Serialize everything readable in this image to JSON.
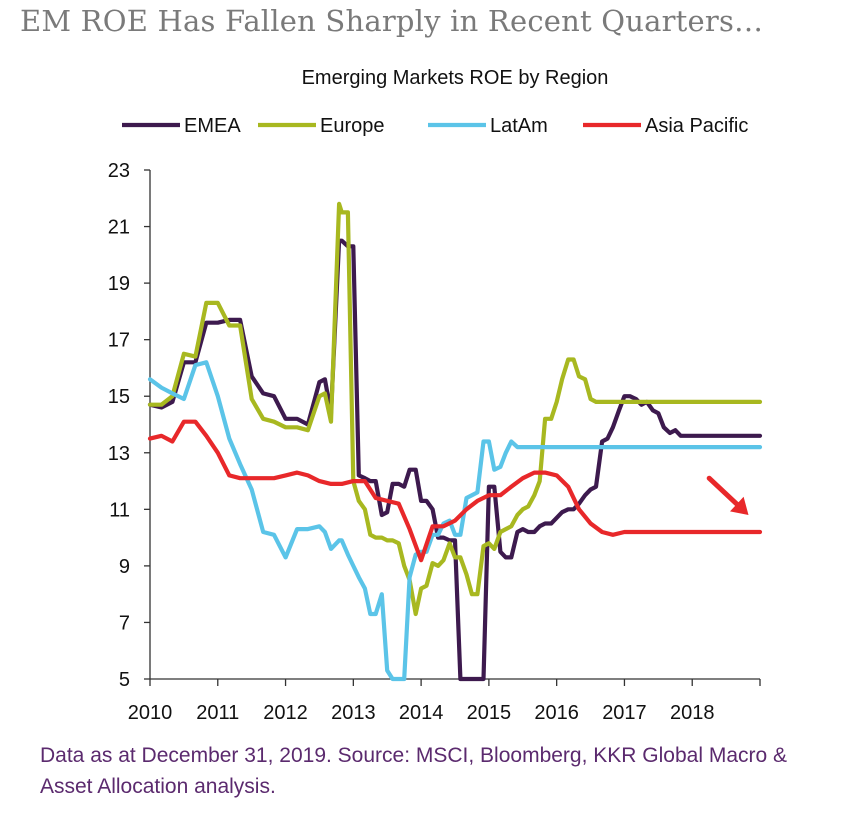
{
  "headline": "EM ROE Has Fallen Sharply in Recent Quarters…",
  "footnote": "Data as at December 31, 2019. Source: MSCI, Bloomberg, KKR Global Macro & Asset Allocation analysis.",
  "chart_data": {
    "type": "line",
    "title": "Emerging Markets ROE by Region",
    "xlabel": "",
    "ylabel": "",
    "xlim": [
      2010,
      2019
    ],
    "ylim": [
      5,
      23
    ],
    "x_ticks": [
      2010,
      2011,
      2012,
      2013,
      2014,
      2015,
      2016,
      2017,
      2018,
      2019
    ],
    "x_tick_labels": [
      "2010",
      "2011",
      "2012",
      "2013",
      "2014",
      "2015",
      "2016",
      "2017",
      "2018",
      ""
    ],
    "y_ticks": [
      5,
      7,
      9,
      11,
      13,
      15,
      17,
      19,
      21,
      23
    ],
    "legend_position": "top",
    "series": [
      {
        "name": "EMEA",
        "color": "#3d1a4e",
        "x": [
          2010.0,
          2010.17,
          2010.33,
          2010.5,
          2010.67,
          2010.83,
          2011.0,
          2011.17,
          2011.33,
          2011.5,
          2011.67,
          2011.83,
          2012.0,
          2012.17,
          2012.33,
          2012.5,
          2012.58,
          2012.67,
          2012.79,
          2012.83,
          2012.92,
          2013.0,
          2013.08,
          2013.17,
          2013.25,
          2013.33,
          2013.42,
          2013.5,
          2013.58,
          2013.67,
          2013.75,
          2013.83,
          2013.92,
          2014.0,
          2014.08,
          2014.17,
          2014.25,
          2014.33,
          2014.42,
          2014.5,
          2014.58,
          2014.67,
          2014.75,
          2014.83,
          2014.92,
          2015.0,
          2015.08,
          2015.17,
          2015.25,
          2015.33,
          2015.42,
          2015.5,
          2015.58,
          2015.67,
          2015.75,
          2015.83,
          2015.92,
          2016.0,
          2016.08,
          2016.17,
          2016.25,
          2016.33,
          2016.42,
          2016.5,
          2016.58,
          2016.67,
          2016.75,
          2016.83,
          2016.92,
          2017.0,
          2017.08,
          2017.17,
          2017.25,
          2017.33,
          2017.42,
          2017.5,
          2017.58,
          2017.67,
          2017.75,
          2017.83,
          2017.92,
          2018.0,
          2018.08,
          2018.17,
          2018.25,
          2018.33,
          2018.42,
          2018.5,
          2018.58,
          2018.67,
          2018.75,
          2018.83,
          2018.92,
          2019.0
        ],
        "values": [
          14.7,
          14.6,
          14.8,
          16.2,
          16.2,
          17.6,
          17.6,
          17.7,
          17.7,
          15.7,
          15.1,
          15.0,
          14.2,
          14.2,
          14.0,
          15.5,
          15.6,
          14.4,
          20.5,
          20.5,
          20.3,
          20.3,
          12.2,
          12.1,
          12.0,
          12.0,
          10.8,
          10.9,
          11.9,
          11.9,
          11.8,
          12.4,
          12.4,
          11.3,
          11.3,
          11.0,
          10.0,
          10.0,
          9.9,
          9.9,
          5.0,
          5.0,
          5.0,
          5.0,
          5.0,
          11.8,
          11.8,
          9.5,
          9.3,
          9.3,
          10.2,
          10.3,
          10.2,
          10.2,
          10.4,
          10.5,
          10.5,
          10.7,
          10.9,
          11.0,
          11.0,
          11.2,
          11.5,
          11.7,
          11.8,
          13.4,
          13.5,
          13.9,
          14.5,
          15.0,
          15.0,
          14.9,
          14.7,
          14.8,
          14.5,
          14.4,
          13.9,
          13.7,
          13.8,
          13.6,
          13.6,
          13.6,
          13.6,
          13.6,
          13.6,
          13.6,
          13.6,
          13.6,
          13.6,
          13.6,
          13.6,
          13.6,
          13.6,
          13.6
        ]
      },
      {
        "name": "Europe",
        "color": "#a8b820",
        "x": [
          2010.0,
          2010.17,
          2010.33,
          2010.5,
          2010.67,
          2010.83,
          2011.0,
          2011.17,
          2011.33,
          2011.5,
          2011.67,
          2011.83,
          2012.0,
          2012.17,
          2012.33,
          2012.5,
          2012.58,
          2012.67,
          2012.79,
          2012.83,
          2012.92,
          2013.0,
          2013.08,
          2013.17,
          2013.25,
          2013.33,
          2013.42,
          2013.5,
          2013.58,
          2013.67,
          2013.75,
          2013.83,
          2013.92,
          2014.0,
          2014.08,
          2014.17,
          2014.25,
          2014.33,
          2014.42,
          2014.5,
          2014.58,
          2014.67,
          2014.75,
          2014.83,
          2014.92,
          2015.0,
          2015.08,
          2015.17,
          2015.25,
          2015.33,
          2015.42,
          2015.5,
          2015.58,
          2015.67,
          2015.75,
          2015.83,
          2015.92,
          2016.0,
          2016.08,
          2016.17,
          2016.25,
          2016.33,
          2016.42,
          2016.5,
          2016.58,
          2016.67,
          2016.75,
          2016.83,
          2016.92,
          2017.0,
          2017.08,
          2017.17,
          2017.25,
          2017.33,
          2017.42,
          2017.5,
          2017.58,
          2017.67,
          2017.75,
          2017.83,
          2017.92,
          2018.0,
          2018.08,
          2018.17,
          2018.25,
          2018.33,
          2018.42,
          2018.5,
          2018.58,
          2018.67,
          2018.75,
          2018.83,
          2018.92,
          2019.0
        ],
        "values": [
          14.7,
          14.7,
          15.0,
          16.5,
          16.4,
          18.3,
          18.3,
          17.5,
          17.5,
          14.9,
          14.2,
          14.1,
          13.9,
          13.9,
          13.8,
          15.0,
          15.1,
          14.1,
          21.8,
          21.5,
          21.5,
          12.0,
          11.3,
          11.0,
          10.1,
          10.0,
          10.0,
          9.9,
          9.9,
          9.8,
          9.0,
          8.5,
          7.3,
          8.2,
          8.3,
          9.1,
          9.0,
          9.2,
          9.8,
          9.3,
          9.3,
          8.7,
          8.0,
          8.0,
          9.7,
          9.8,
          9.6,
          10.2,
          10.3,
          10.4,
          10.8,
          11.0,
          11.1,
          11.5,
          12.0,
          14.2,
          14.2,
          14.8,
          15.6,
          16.3,
          16.3,
          15.7,
          15.6,
          14.9,
          14.8,
          14.8,
          14.8,
          14.8,
          14.8,
          14.8,
          14.8,
          14.8,
          14.8,
          14.8,
          14.8,
          14.8,
          14.8,
          14.8,
          14.8,
          14.8,
          14.8,
          14.8,
          14.8,
          14.8,
          14.8,
          14.8,
          14.8,
          14.8,
          14.8,
          14.8,
          14.8,
          14.8,
          14.8,
          14.8
        ]
      },
      {
        "name": "LatAm",
        "color": "#5bc4e8",
        "x": [
          2010.0,
          2010.17,
          2010.33,
          2010.5,
          2010.67,
          2010.83,
          2011.0,
          2011.17,
          2011.33,
          2011.5,
          2011.67,
          2011.83,
          2012.0,
          2012.17,
          2012.33,
          2012.5,
          2012.58,
          2012.67,
          2012.79,
          2012.83,
          2012.92,
          2013.0,
          2013.08,
          2013.17,
          2013.25,
          2013.33,
          2013.42,
          2013.5,
          2013.58,
          2013.67,
          2013.75,
          2013.83,
          2013.92,
          2014.0,
          2014.08,
          2014.17,
          2014.25,
          2014.33,
          2014.42,
          2014.5,
          2014.58,
          2014.67,
          2014.75,
          2014.83,
          2014.92,
          2015.0,
          2015.08,
          2015.17,
          2015.25,
          2015.33,
          2015.42,
          2015.5,
          2015.58,
          2015.67,
          2015.75,
          2015.83,
          2015.92,
          2016.0,
          2016.08,
          2016.17,
          2016.25,
          2016.33,
          2016.42,
          2016.5,
          2016.58,
          2016.67,
          2016.75,
          2016.83,
          2016.92,
          2017.0,
          2017.08,
          2017.17,
          2017.25,
          2017.33,
          2017.42,
          2017.5,
          2017.58,
          2017.67,
          2017.75,
          2017.83,
          2017.92,
          2018.0,
          2018.08,
          2018.17,
          2018.25,
          2018.33,
          2018.42,
          2018.5,
          2018.58,
          2018.67,
          2018.75,
          2018.83,
          2018.92,
          2019.0
        ],
        "values": [
          15.6,
          15.3,
          15.1,
          14.9,
          16.1,
          16.2,
          15.0,
          13.5,
          12.6,
          11.7,
          10.2,
          10.1,
          9.3,
          10.3,
          10.3,
          10.4,
          10.2,
          9.6,
          9.9,
          9.9,
          9.4,
          9.0,
          8.6,
          8.2,
          7.3,
          7.3,
          8.0,
          5.3,
          5.0,
          5.0,
          5.0,
          8.6,
          9.4,
          9.5,
          9.5,
          10.1,
          10.1,
          10.5,
          10.6,
          10.1,
          10.1,
          11.4,
          11.5,
          11.6,
          13.4,
          13.4,
          12.4,
          12.5,
          13.0,
          13.4,
          13.2,
          13.2,
          13.2,
          13.2,
          13.2,
          13.2,
          13.2,
          13.2,
          13.2,
          13.2,
          13.2,
          13.2,
          13.2,
          13.2,
          13.2,
          13.2,
          13.2,
          13.2,
          13.2,
          13.2,
          13.2,
          13.2,
          13.2,
          13.2,
          13.2,
          13.2,
          13.2,
          13.2,
          13.2,
          13.2,
          13.2,
          13.2,
          13.2,
          13.2,
          13.2,
          13.2,
          13.2,
          13.2,
          13.2,
          13.2,
          13.2,
          13.2,
          13.2,
          13.2
        ]
      },
      {
        "name": "Asia Pacific",
        "color": "#e8282a",
        "x": [
          2010.0,
          2010.17,
          2010.33,
          2010.5,
          2010.67,
          2010.83,
          2011.0,
          2011.17,
          2011.33,
          2011.5,
          2011.67,
          2011.83,
          2012.0,
          2012.17,
          2012.33,
          2012.5,
          2012.67,
          2012.83,
          2013.0,
          2013.17,
          2013.33,
          2013.5,
          2013.67,
          2013.83,
          2014.0,
          2014.17,
          2014.33,
          2014.5,
          2014.67,
          2014.83,
          2015.0,
          2015.17,
          2015.33,
          2015.5,
          2015.67,
          2015.83,
          2016.0,
          2016.17,
          2016.33,
          2016.5,
          2016.67,
          2016.83,
          2017.0,
          2017.17,
          2017.33,
          2017.5,
          2017.67,
          2017.83,
          2018.0,
          2018.17,
          2018.33,
          2018.5,
          2018.67,
          2018.83,
          2019.0
        ],
        "values": [
          13.5,
          13.6,
          13.4,
          14.1,
          14.1,
          13.6,
          13.0,
          12.2,
          12.1,
          12.1,
          12.1,
          12.1,
          12.2,
          12.3,
          12.2,
          12.0,
          11.9,
          11.9,
          12.0,
          12.0,
          11.4,
          11.3,
          11.2,
          10.3,
          9.2,
          10.4,
          10.4,
          10.6,
          11.0,
          11.3,
          11.5,
          11.5,
          11.8,
          12.1,
          12.3,
          12.3,
          12.2,
          11.8,
          11.0,
          10.5,
          10.2,
          10.1,
          10.2,
          10.2,
          10.2,
          10.2,
          10.2,
          10.2,
          10.2,
          10.2,
          10.2,
          10.2,
          10.2,
          10.2,
          10.2
        ]
      }
    ],
    "annotations": [
      {
        "type": "arrow",
        "label": "downward trend arrow",
        "color": "#e8282a",
        "from": [
          2018.25,
          12.1
        ],
        "to": [
          2018.83,
          10.8
        ]
      }
    ]
  }
}
